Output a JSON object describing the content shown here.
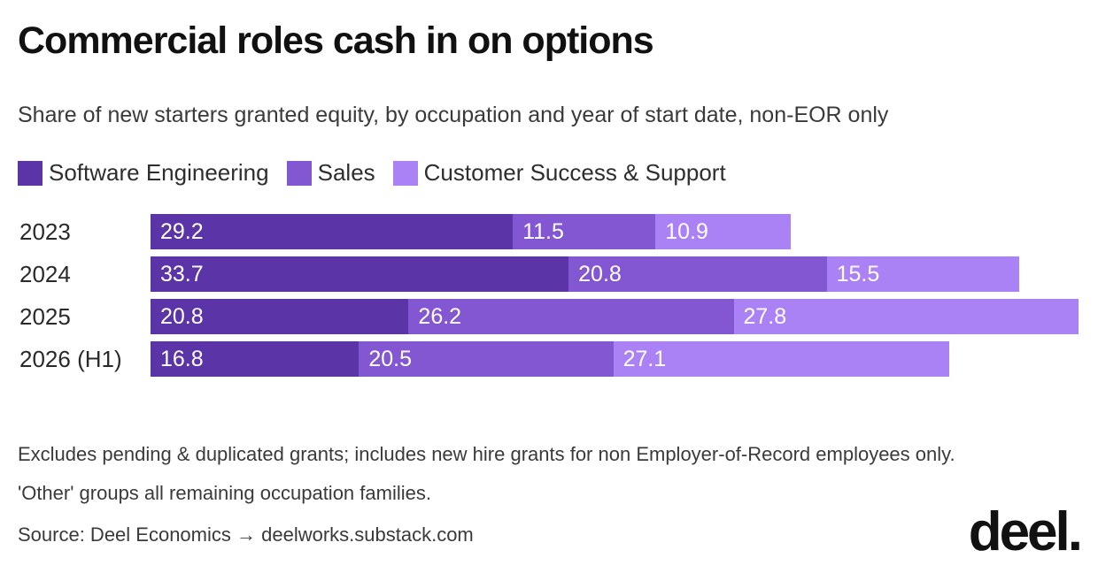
{
  "header": {
    "title": "Commercial roles cash in on options",
    "subtitle": "Share of new starters granted equity, by occupation and year of start date, non-EOR only"
  },
  "footer": {
    "note": "Excludes pending & duplicated grants; includes new hire grants for non Employer-of-Record employees only. 'Other' groups all remaining occupation families.",
    "source": "Source: Deel Economics → deelworks.substack.com",
    "logo": "deel."
  },
  "chart_data": {
    "type": "bar",
    "orientation": "horizontal",
    "stacked": true,
    "title": "Commercial roles cash in on options",
    "subtitle": "Share of new starters granted equity, by occupation and year of start date, non-EOR only",
    "categories": [
      "2023",
      "2024",
      "2025",
      "2026 (H1)"
    ],
    "series": [
      {
        "name": "Software Engineering",
        "color": "#5b35a8",
        "values": [
          29.2,
          33.7,
          20.8,
          16.8
        ]
      },
      {
        "name": "Sales",
        "color": "#8457d2",
        "values": [
          11.5,
          20.8,
          26.2,
          20.5
        ]
      },
      {
        "name": "Customer Success & Support",
        "color": "#ab82f6",
        "values": [
          10.9,
          15.5,
          27.8,
          27.1
        ]
      }
    ],
    "legend_position": "top-left",
    "data_labels": true,
    "grid": false,
    "xlim": [
      0,
      74.8
    ]
  }
}
